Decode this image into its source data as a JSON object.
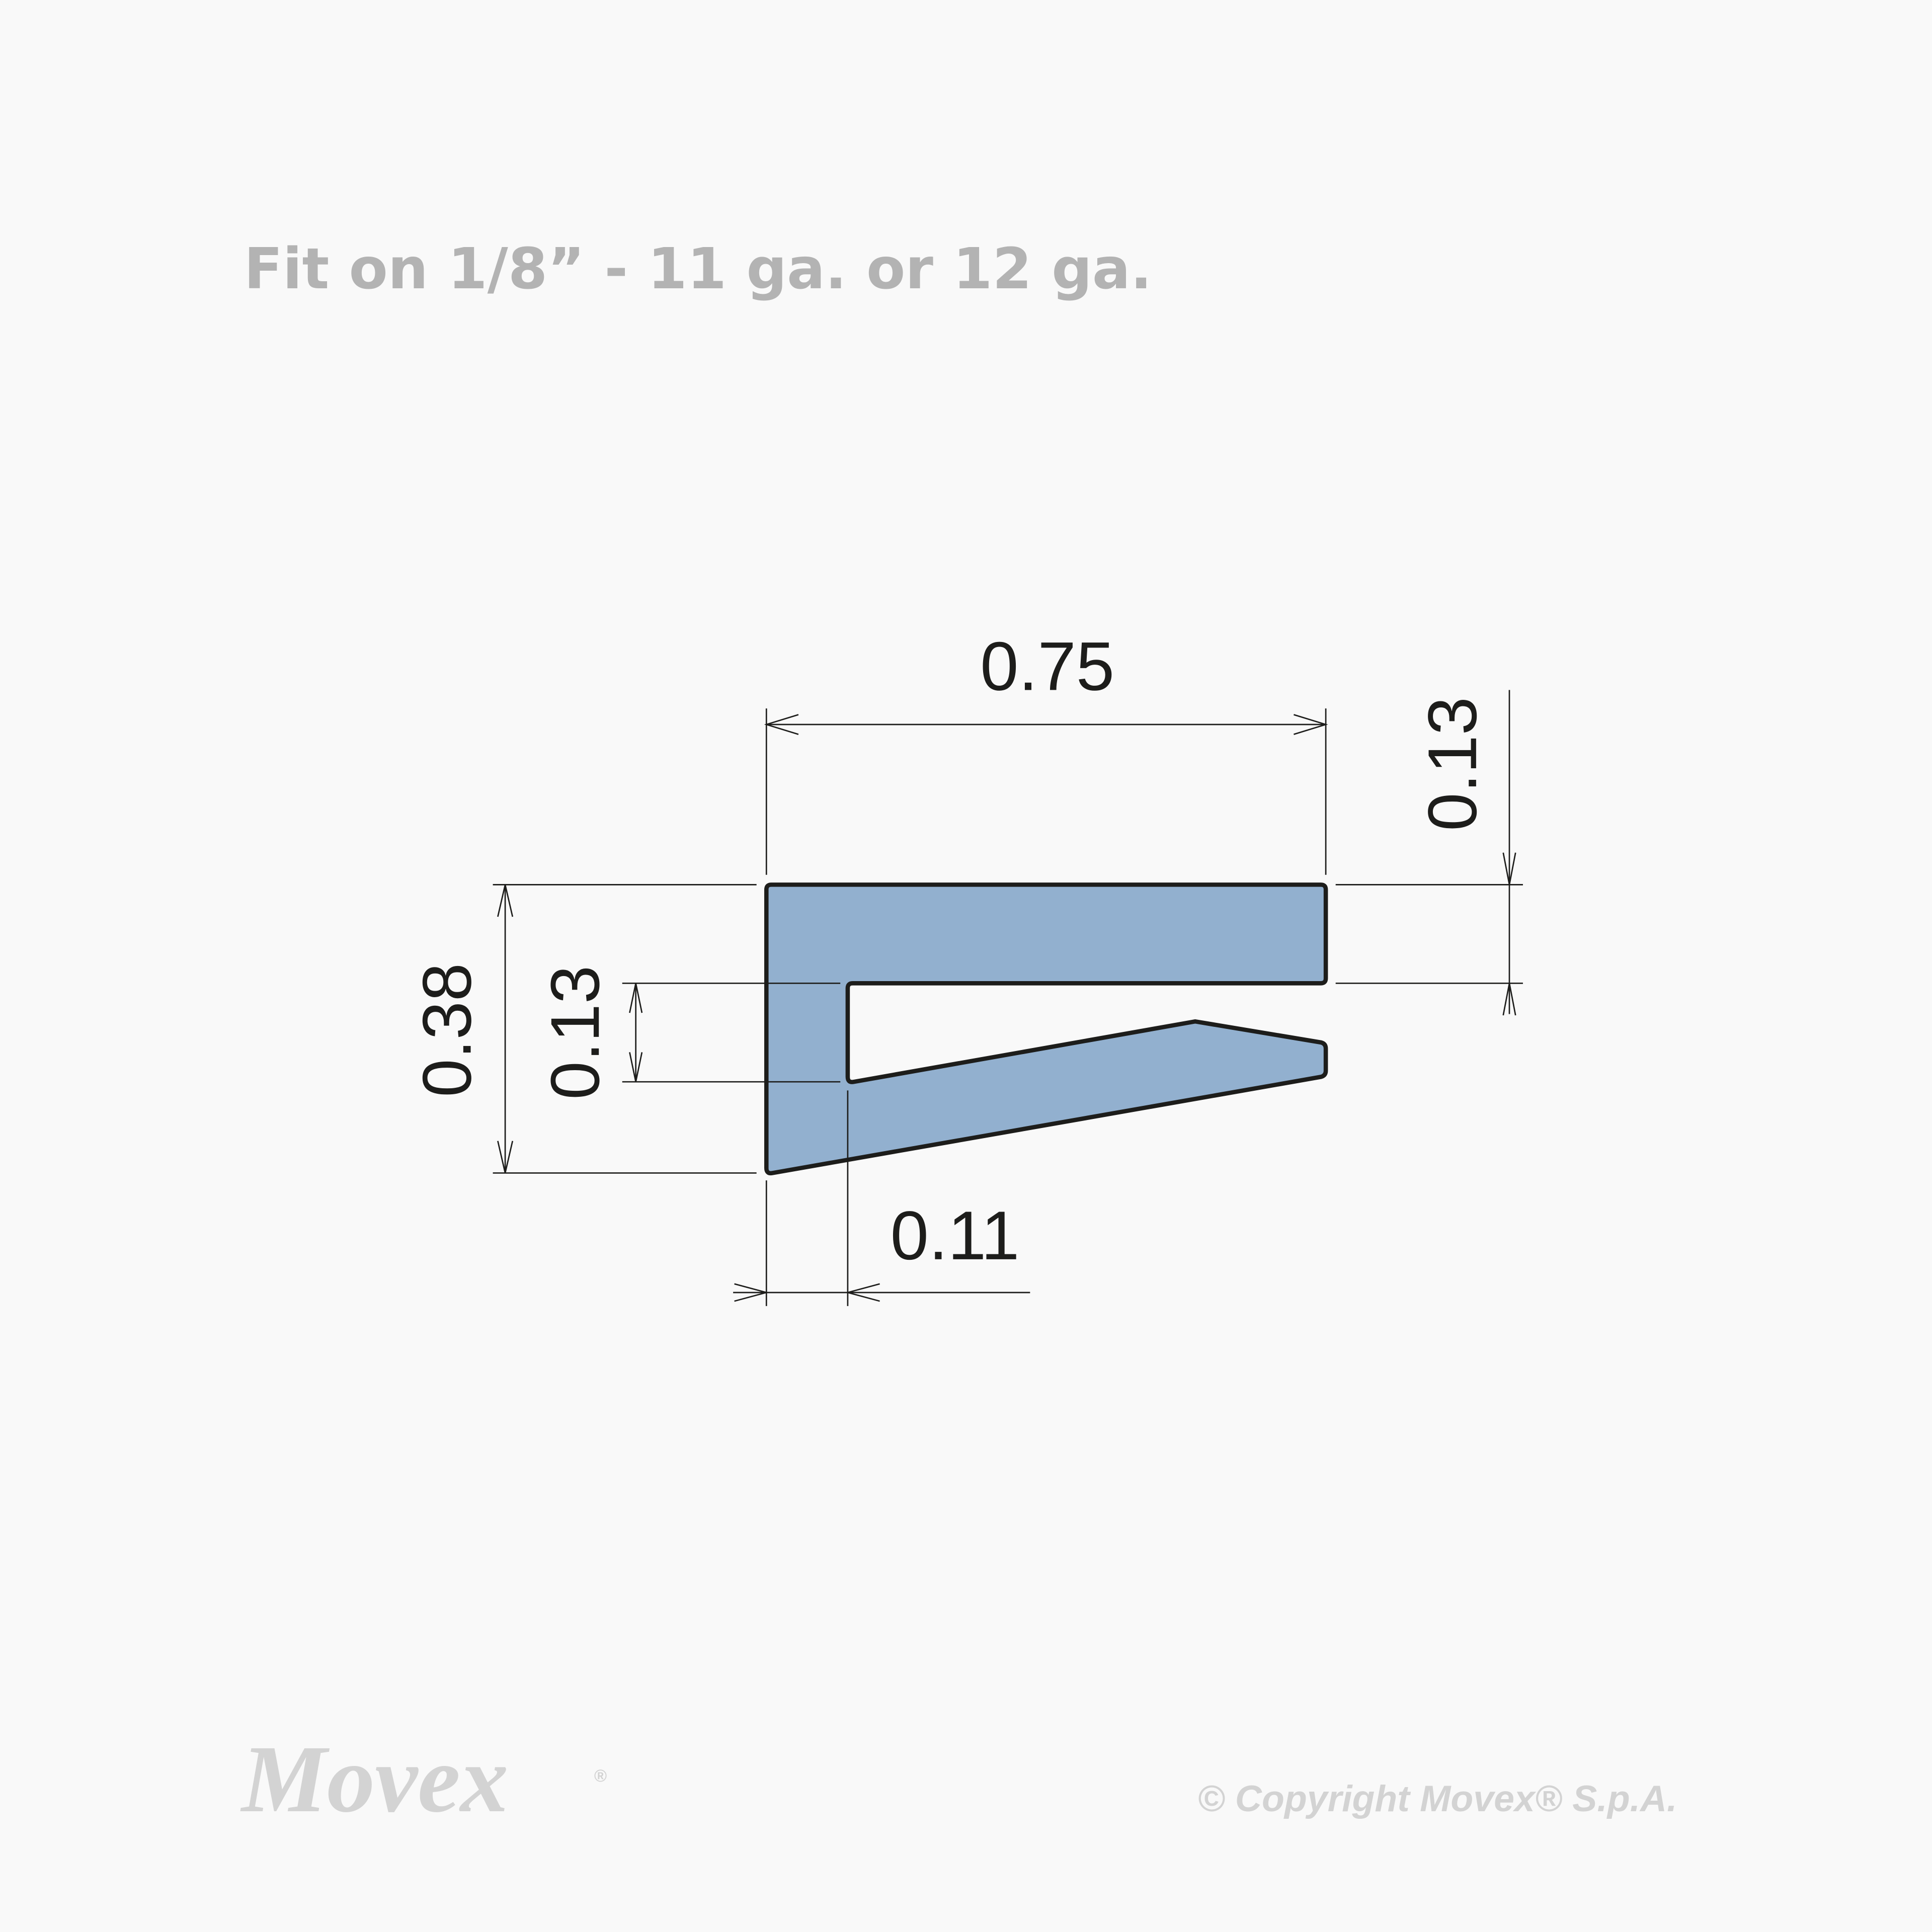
{
  "title": "Fit on 1/8” - 11 ga. or 12 ga.",
  "profile": {
    "fill_color": "#92b0cf",
    "stroke_color": "#1d1d1b"
  },
  "dimensions": {
    "overall_width": "0.75",
    "top_flange_thickness": "0.13",
    "overall_height": "0.38",
    "slot_opening": "0.13",
    "web_thickness": "0.11"
  },
  "footer": {
    "logo": "Movex",
    "logo_mark": "®",
    "copyright": "© Copyright Movex® S.p.A."
  }
}
